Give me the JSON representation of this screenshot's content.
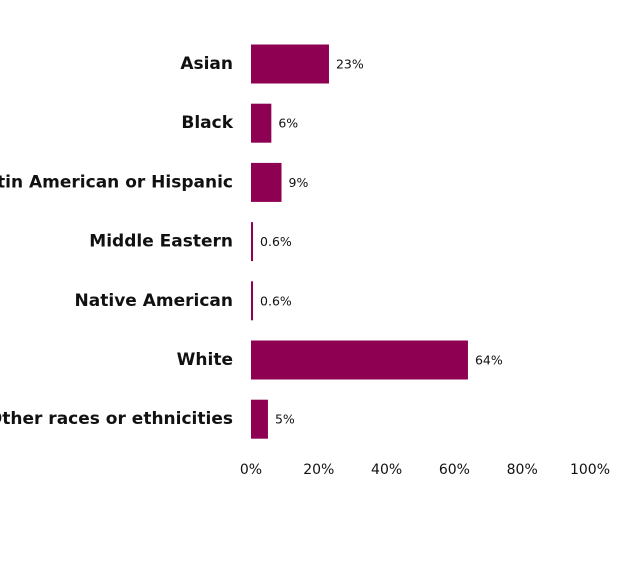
{
  "chart_data": {
    "type": "bar",
    "orientation": "horizontal",
    "categories": [
      "Asian",
      "Black",
      "Latin American or Hispanic",
      "Middle Eastern",
      "Native American",
      "White",
      "Other races or ethnicities"
    ],
    "values": [
      23,
      6,
      9,
      0.6,
      0.6,
      64,
      5
    ],
    "value_labels": [
      "23%",
      "6%",
      "9%",
      "0.6%",
      "0.6%",
      "64%",
      "5%"
    ],
    "xlim": [
      0,
      100
    ],
    "x_ticks": [
      0,
      20,
      40,
      60,
      80,
      100
    ],
    "x_tick_labels": [
      "0%",
      "20%",
      "40%",
      "60%",
      "80%",
      "100%"
    ],
    "bar_color": "#8e0152",
    "grid": false,
    "legend": "none"
  }
}
